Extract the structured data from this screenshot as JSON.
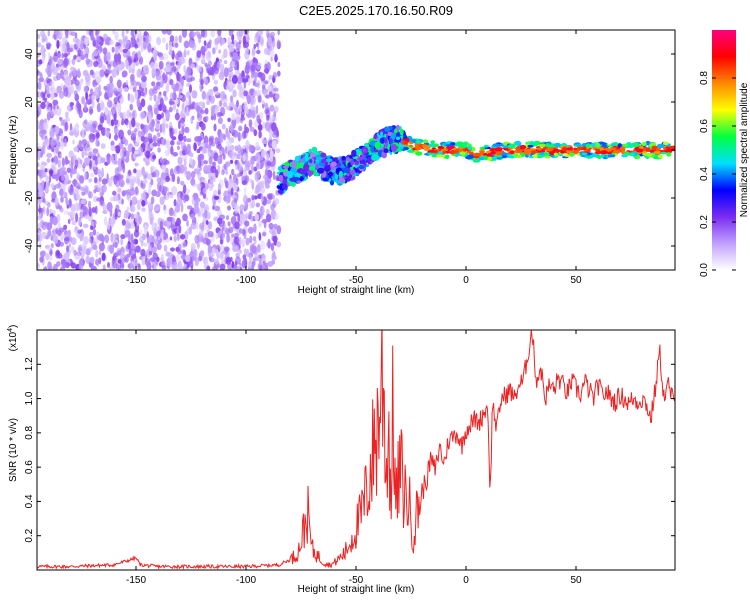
{
  "figure_title": "C2E5.2025.170.16.50.R09",
  "chart_data": [
    {
      "type": "heatmap",
      "title": "C2E5.2025.170.16.50.R09",
      "xlabel": "Height of straight line (km)",
      "ylabel": "Frequency (Hz)",
      "xlim": [
        -195,
        95
      ],
      "ylim": [
        -50,
        50
      ],
      "xticks": [
        -150,
        -100,
        -50,
        0,
        50
      ],
      "yticks": [
        -40,
        -20,
        0,
        20,
        40
      ],
      "colorbar": {
        "label": "Normalized spectral amplitude",
        "range": [
          0.0,
          1.0
        ],
        "ticks": [
          0.0,
          0.2,
          0.4,
          0.6,
          0.8
        ],
        "colors": [
          "#ffffff",
          "#c0a0ff",
          "#7a2bf0",
          "#0000ff",
          "#00e0ff",
          "#00ff40",
          "#ffff00",
          "#ff8800",
          "#ff0000",
          "#ff0080"
        ]
      },
      "regions": [
        {
          "name": "noise",
          "x": [
            -195,
            -85
          ],
          "freq": [
            -50,
            50
          ],
          "amplitude": 0.15
        },
        {
          "name": "track-rise",
          "x": [
            -85,
            -28
          ],
          "freq_start": -15,
          "freq_end": 5,
          "amplitude": 0.35
        },
        {
          "name": "track-steady",
          "x": [
            -28,
            95
          ],
          "freq": [
            -3,
            3
          ],
          "amplitude": 0.9
        }
      ],
      "track_freq": {
        "x": [
          -88,
          -85,
          -80,
          -75,
          -70,
          -65,
          -60,
          -55,
          -50,
          -45,
          -40,
          -35,
          -30,
          -25,
          -20,
          -10,
          0,
          5,
          10,
          20,
          40,
          60,
          80,
          95
        ],
        "y": [
          -14,
          -13,
          -10,
          -8,
          -4,
          -7,
          -9,
          -8,
          -6,
          -2,
          2,
          4,
          5,
          2,
          1,
          0,
          0,
          -2,
          -1,
          0,
          0,
          0,
          0,
          0
        ]
      }
    },
    {
      "type": "line",
      "xlabel": "Height of straight line (km)",
      "ylabel": "SNR (10 * v/v)",
      "yscale_label": "(x10",
      "yscale_exp": "4",
      "xlim": [
        -195,
        95
      ],
      "ylim": [
        0,
        1.4
      ],
      "xticks": [
        -150,
        -100,
        -50,
        0,
        50
      ],
      "yticks": [
        0.2,
        0.4,
        0.6,
        0.8,
        1.0,
        1.2
      ],
      "line_color": "#ee2222",
      "series": [
        {
          "x": [
            -195,
            -180,
            -160,
            -150,
            -148,
            -140,
            -120,
            -100,
            -85,
            -80,
            -78,
            -76,
            -74,
            -72,
            -70,
            -65,
            -62,
            -60,
            -55,
            -52,
            -50,
            -48,
            -46,
            -44,
            -42,
            -40,
            -38,
            -36,
            -35,
            -34,
            -33,
            -32,
            -30,
            -28,
            -26,
            -25,
            -24,
            -22,
            -21,
            -20,
            -19,
            -18,
            -16,
            -14,
            -12,
            -10,
            -8,
            -6,
            -4,
            -2,
            0,
            2,
            4,
            6,
            8,
            10,
            11,
            12,
            14,
            16,
            18,
            20,
            22,
            24,
            26,
            28,
            30,
            32,
            34,
            36,
            38,
            40,
            42,
            44,
            46,
            48,
            50,
            52,
            54,
            56,
            58,
            60,
            62,
            64,
            66,
            68,
            70,
            72,
            74,
            76,
            78,
            80,
            82,
            84,
            86,
            88,
            90,
            92,
            95
          ],
          "y": [
            0.02,
            0.02,
            0.03,
            0.07,
            0.03,
            0.02,
            0.02,
            0.02,
            0.03,
            0.06,
            0.08,
            0.12,
            0.22,
            0.34,
            0.12,
            0.05,
            0.03,
            0.04,
            0.1,
            0.18,
            0.25,
            0.3,
            0.4,
            0.55,
            0.7,
            0.85,
            1.16,
            0.6,
            0.8,
            0.4,
            1.05,
            0.35,
            0.6,
            0.45,
            0.4,
            0.3,
            0.2,
            0.35,
            0.45,
            0.4,
            0.5,
            0.52,
            0.65,
            0.58,
            0.72,
            0.62,
            0.75,
            0.78,
            0.8,
            0.72,
            0.82,
            0.85,
            0.88,
            0.86,
            0.92,
            0.95,
            0.4,
            0.98,
            0.82,
            1.0,
            1.02,
            1.05,
            1.0,
            1.08,
            1.1,
            1.25,
            1.4,
            1.1,
            1.18,
            1.0,
            1.08,
            1.05,
            1.12,
            1.08,
            1.03,
            1.1,
            1.06,
            1.02,
            1.1,
            1.05,
            1.0,
            1.08,
            1.02,
            1.04,
            1.0,
            0.98,
            1.02,
            1.0,
            0.97,
            1.0,
            0.98,
            1.0,
            0.97,
            0.88,
            1.05,
            1.28,
            1.0,
            1.08,
            0.95
          ]
        }
      ]
    }
  ]
}
